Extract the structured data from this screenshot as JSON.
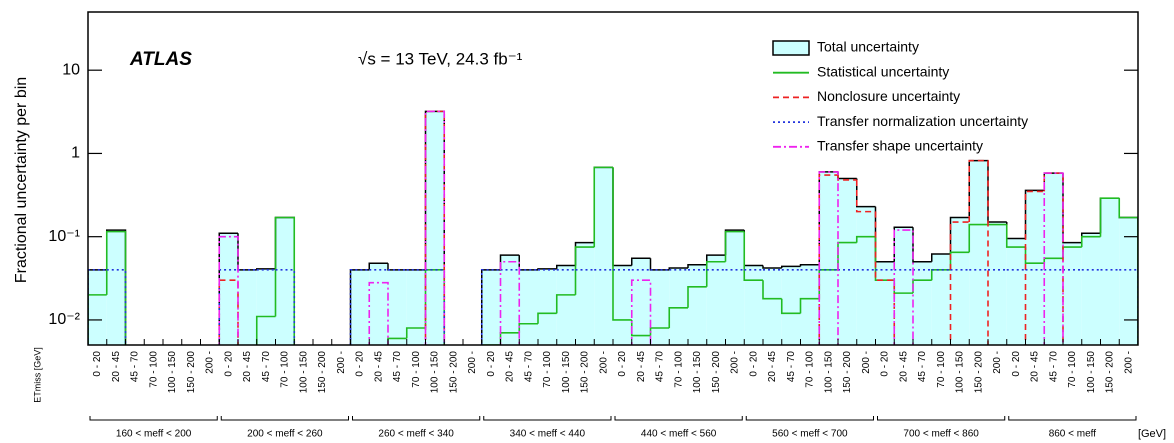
{
  "chart_data": {
    "type": "histogram-steps",
    "experiment": "ATLAS",
    "energy_label": "√s = 13 TeV,  24.3 fb⁻¹",
    "y_label": "Fractional uncertainty per bin",
    "x_label": "ETmiss [GeV]",
    "x_unit": "[GeV]",
    "log_y": true,
    "ylim": [
      0.005,
      50
    ],
    "yticks": [
      {
        "value": 0.01,
        "label": "10⁻²"
      },
      {
        "value": 0.1,
        "label": "10⁻¹"
      },
      1,
      10
    ],
    "legend": "upper right",
    "groups": [
      "160 < meff < 200",
      "200 < meff < 260",
      "260 < meff < 340",
      "340 < meff < 440",
      "440 < meff < 560",
      "560 < meff < 700",
      "700 < meff < 860",
      "860 < meff"
    ],
    "categories": [
      "0 - 20",
      "20 - 45",
      "45 - 70",
      "70 - 100",
      "100 - 150",
      "150 - 200",
      "200 -",
      "0 - 20",
      "20 - 45",
      "45 - 70",
      "70 - 100",
      "100 - 150",
      "150 - 200",
      "200 -",
      "0 - 20",
      "20 - 45",
      "45 - 70",
      "70 - 100",
      "100 - 150",
      "150 - 200",
      "200 -",
      "0 - 20",
      "20 - 45",
      "45 - 70",
      "70 - 100",
      "100 - 150",
      "150 - 200",
      "200 -",
      "0 - 20",
      "20 - 45",
      "45 - 70",
      "70 - 100",
      "100 - 150",
      "150 - 200",
      "200 -",
      "0 - 20",
      "20 - 45",
      "45 - 70",
      "70 - 100",
      "100 - 150",
      "150 - 200",
      "200 -",
      "0 - 20",
      "20 - 45",
      "45 - 70",
      "70 - 100",
      "100 - 150",
      "150 - 200",
      "200 -",
      "0 - 20",
      "20 - 45",
      "45 - 70",
      "70 - 100",
      "100 - 150",
      "150 - 200",
      "200 -"
    ],
    "series": [
      {
        "name": "Total uncertainty",
        "color": "#ccffff",
        "edge": "#000000",
        "style": "fill",
        "values": [
          0.04,
          0.12,
          null,
          null,
          null,
          null,
          null,
          0.11,
          0.04,
          0.041,
          0.17,
          null,
          null,
          null,
          0.04,
          0.048,
          0.04,
          0.04,
          3.2,
          null,
          null,
          0.04,
          0.06,
          0.04,
          0.041,
          0.045,
          0.085,
          0.68,
          0.045,
          0.055,
          0.04,
          0.042,
          0.046,
          0.06,
          0.12,
          0.045,
          0.042,
          0.044,
          0.046,
          0.6,
          0.5,
          0.23,
          0.05,
          0.13,
          0.05,
          0.062,
          0.17,
          0.82,
          0.15,
          0.095,
          0.36,
          0.58,
          0.085,
          0.11,
          0.29,
          0.17
        ]
      },
      {
        "name": "Statistical uncertainty",
        "color": "#22bb22",
        "style": "solid",
        "values": [
          0.02,
          0.115,
          null,
          null,
          null,
          null,
          null,
          null,
          0.004,
          0.011,
          0.17,
          null,
          null,
          null,
          0.004,
          0.004,
          0.006,
          0.008,
          0.04,
          null,
          null,
          0.005,
          0.007,
          0.009,
          0.012,
          0.02,
          0.075,
          0.68,
          0.01,
          0.0065,
          0.008,
          0.014,
          0.025,
          0.05,
          0.115,
          0.03,
          0.018,
          0.012,
          0.018,
          0.04,
          0.085,
          0.1,
          0.03,
          0.021,
          0.03,
          0.04,
          0.065,
          0.14,
          0.14,
          0.075,
          0.048,
          0.055,
          0.075,
          0.1,
          0.29,
          0.17
        ]
      },
      {
        "name": "Nonclosure uncertainty",
        "color": "#ee2222",
        "style": "dashed",
        "values": [
          null,
          null,
          null,
          null,
          null,
          null,
          null,
          0.03,
          null,
          null,
          null,
          null,
          null,
          null,
          null,
          null,
          null,
          null,
          3.2,
          null,
          null,
          null,
          null,
          null,
          null,
          null,
          null,
          null,
          null,
          null,
          null,
          null,
          null,
          null,
          null,
          null,
          null,
          null,
          null,
          0.55,
          0.48,
          0.2,
          0.03,
          null,
          null,
          null,
          0.15,
          0.82,
          null,
          null,
          0.35,
          0.58,
          null,
          null,
          null,
          null
        ]
      },
      {
        "name": "Transfer normalization uncertainty",
        "color": "#2233dd",
        "style": "dotted",
        "values": [
          0.04,
          0.04,
          null,
          null,
          null,
          null,
          null,
          0.04,
          0.04,
          0.04,
          0.04,
          null,
          null,
          null,
          0.04,
          0.04,
          0.04,
          0.04,
          0.04,
          null,
          null,
          0.04,
          0.04,
          0.04,
          0.04,
          0.04,
          0.04,
          0.04,
          0.04,
          0.04,
          0.04,
          0.04,
          0.04,
          0.04,
          0.04,
          0.04,
          0.04,
          0.04,
          0.04,
          0.04,
          0.04,
          0.04,
          0.04,
          0.04,
          0.04,
          0.04,
          0.04,
          0.04,
          0.04,
          0.04,
          0.04,
          0.04,
          0.04,
          0.04,
          0.04,
          0.04
        ]
      },
      {
        "name": "Transfer shape uncertainty",
        "color": "#ee22ee",
        "style": "dashdot",
        "values": [
          null,
          null,
          null,
          null,
          null,
          null,
          null,
          0.1,
          null,
          null,
          null,
          null,
          null,
          null,
          null,
          0.028,
          null,
          null,
          3.2,
          null,
          null,
          null,
          0.05,
          null,
          null,
          null,
          null,
          null,
          null,
          0.03,
          null,
          null,
          null,
          null,
          null,
          null,
          null,
          null,
          null,
          0.6,
          null,
          null,
          null,
          0.12,
          null,
          null,
          null,
          null,
          null,
          null,
          null,
          0.58,
          null,
          null,
          null,
          null
        ]
      }
    ]
  }
}
